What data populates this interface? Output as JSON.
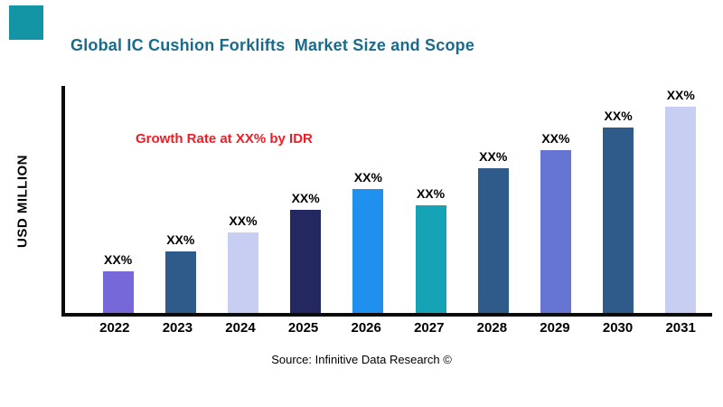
{
  "page": {
    "title": "Global IC Cushion Forklifts  Market Size and Scope",
    "y_axis_label": "USD MILLION",
    "annotation": "Growth Rate at XX% by IDR",
    "source": "Source: Infinitive Data Research ©"
  },
  "colors": {
    "title": "#1A6B8B",
    "annotation": "#EE1C25",
    "accent_square": "#1395A6",
    "axis": "#0A0A0A"
  },
  "chart_data": {
    "type": "bar",
    "title": "Global IC Cushion Forklifts  Market Size and Scope",
    "categories": [
      "2022",
      "2023",
      "2024",
      "2025",
      "2026",
      "2027",
      "2028",
      "2029",
      "2030",
      "2031"
    ],
    "values": [
      20,
      30,
      39,
      50,
      60,
      52,
      70,
      79,
      90,
      100
    ],
    "bar_labels": [
      "XX%",
      "XX%",
      "XX%",
      "XX%",
      "XX%",
      "XX%",
      "XX%",
      "XX%",
      "XX%",
      "XX%"
    ],
    "bar_colors": [
      "#7668D8",
      "#2E5B8A",
      "#C8CDF2",
      "#232960",
      "#2090EE",
      "#16A3B5",
      "#2E5B8A",
      "#6674D4",
      "#2E5B8A",
      "#C8CDF2"
    ],
    "xlabel": "",
    "ylabel": "USD MILLION",
    "ylim": [
      0,
      110
    ],
    "grid": false,
    "legend": false,
    "annotation": "Growth Rate at XX% by IDR"
  }
}
